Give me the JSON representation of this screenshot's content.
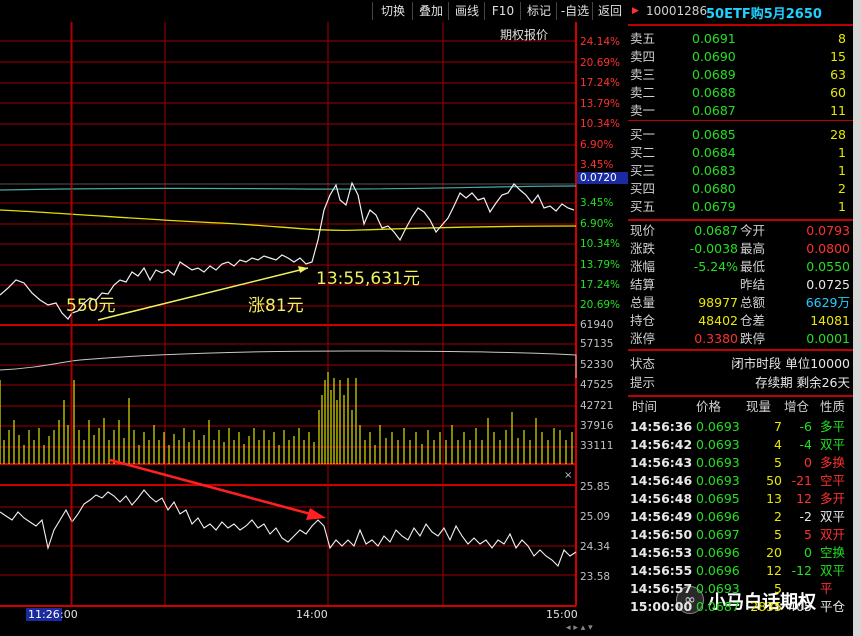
{
  "toolbar": {
    "buttons": [
      "切换",
      "叠加",
      "画线",
      "F10",
      "标记",
      "-自选",
      "返回"
    ]
  },
  "header": {
    "code": "10001286",
    "name": "50ETF购5月2650"
  },
  "chart_top_label": "期权报价",
  "price_axis": {
    "red_labels": [
      "24.14%",
      "20.69%",
      "17.24%",
      "13.79%",
      "10.34%",
      "6.90%",
      "3.45%"
    ],
    "current_label": "0.0720",
    "green_labels": [
      "3.45%",
      "6.90%",
      "10.34%",
      "13.79%",
      "17.24%",
      "20.69%"
    ]
  },
  "volume_axis": [
    "61940",
    "57135",
    "52330",
    "47525",
    "42721",
    "37916",
    "33111"
  ],
  "iv_axis": [
    "25.85",
    "25.09",
    "24.34",
    "23.58"
  ],
  "time_axis": {
    "cursor": "11:26",
    "labels": [
      ":00",
      "14:00",
      "15:00"
    ]
  },
  "annotations": {
    "low": "550元",
    "high": "13:55,631元",
    "gain": "涨81元"
  },
  "order_book": {
    "sell": [
      {
        "label": "卖五",
        "price": "0.0691",
        "qty": "8"
      },
      {
        "label": "卖四",
        "price": "0.0690",
        "qty": "15"
      },
      {
        "label": "卖三",
        "price": "0.0689",
        "qty": "63"
      },
      {
        "label": "卖二",
        "price": "0.0688",
        "qty": "60"
      },
      {
        "label": "卖一",
        "price": "0.0687",
        "qty": "11"
      }
    ],
    "buy": [
      {
        "label": "买一",
        "price": "0.0685",
        "qty": "28"
      },
      {
        "label": "买二",
        "price": "0.0684",
        "qty": "1"
      },
      {
        "label": "买三",
        "price": "0.0683",
        "qty": "1"
      },
      {
        "label": "买四",
        "price": "0.0680",
        "qty": "2"
      },
      {
        "label": "买五",
        "price": "0.0679",
        "qty": "1"
      }
    ]
  },
  "stats": [
    {
      "l1": "现价",
      "v1": "0.0687",
      "c1": "grn",
      "l2": "今开",
      "v2": "0.0793",
      "c2": "red"
    },
    {
      "l1": "涨跌",
      "v1": "-0.0038",
      "c1": "grn",
      "l2": "最高",
      "v2": "0.0800",
      "c2": "red"
    },
    {
      "l1": "涨幅",
      "v1": "-5.24%",
      "c1": "grn",
      "l2": "最低",
      "v2": "0.0550",
      "c2": "grn"
    },
    {
      "l1": "结算",
      "v1": "",
      "c1": "wht",
      "l2": "昨结",
      "v2": "0.0725",
      "c2": "wht"
    },
    {
      "l1": "总量",
      "v1": "98977",
      "c1": "yel",
      "l2": "总额",
      "v2": "6629万",
      "c2": "cyn"
    },
    {
      "l1": "持仓",
      "v1": "48402",
      "c1": "yel",
      "l2": "仓差",
      "v2": "14081",
      "c2": "yel"
    },
    {
      "l1": "涨停",
      "v1": "0.3380",
      "c1": "red",
      "l2": "跌停",
      "v2": "0.0001",
      "c2": "grn"
    }
  ],
  "status": {
    "row1_label": "状态",
    "row1_value": "闭市时段 单位10000",
    "row2_label": "提示",
    "row2_value": "存续期 剩余26天"
  },
  "ticks_header": [
    "时间",
    "价格",
    "现量",
    "增仓",
    "性质"
  ],
  "ticks": [
    {
      "t": "14:56:36",
      "p": "0.0693",
      "q": "7",
      "d": "-6",
      "dc": "grn",
      "n": "多平",
      "nc": "grn"
    },
    {
      "t": "14:56:42",
      "p": "0.0693",
      "q": "4",
      "d": "-4",
      "dc": "grn",
      "n": "双平",
      "nc": "grn"
    },
    {
      "t": "14:56:43",
      "p": "0.0693",
      "q": "5",
      "d": "0",
      "dc": "red",
      "n": "多换",
      "nc": "red"
    },
    {
      "t": "14:56:46",
      "p": "0.0693",
      "q": "50",
      "d": "-21",
      "dc": "red",
      "n": "空平",
      "nc": "red"
    },
    {
      "t": "14:56:48",
      "p": "0.0695",
      "q": "13",
      "d": "12",
      "dc": "red",
      "n": "多开",
      "nc": "red"
    },
    {
      "t": "14:56:49",
      "p": "0.0696",
      "q": "2",
      "d": "-2",
      "dc": "wht",
      "n": "双平",
      "nc": "wht"
    },
    {
      "t": "14:56:50",
      "p": "0.0697",
      "q": "5",
      "d": "5",
      "dc": "red",
      "n": "双开",
      "nc": "red"
    },
    {
      "t": "14:56:53",
      "p": "0.0696",
      "q": "20",
      "d": "0",
      "dc": "grn",
      "n": "空换",
      "nc": "grn"
    },
    {
      "t": "14:56:55",
      "p": "0.0696",
      "q": "12",
      "d": "-12",
      "dc": "grn",
      "n": "双平",
      "nc": "grn"
    },
    {
      "t": "14:56:57",
      "p": "0.0693",
      "q": "5",
      "d": "",
      "dc": "wht",
      "n": "平",
      "nc": "red"
    },
    {
      "t": "15:00:00",
      "p": "0.0687",
      "q": "2835",
      "d": "405",
      "dc": "wht",
      "n": "平仓",
      "nc": "wht"
    }
  ],
  "watermark": "小马白话期权",
  "colors": {
    "grid": "#b00000",
    "price": "#e8e8e8",
    "avg": "#e0e000",
    "up": "#ff3030",
    "down": "#22e022"
  }
}
